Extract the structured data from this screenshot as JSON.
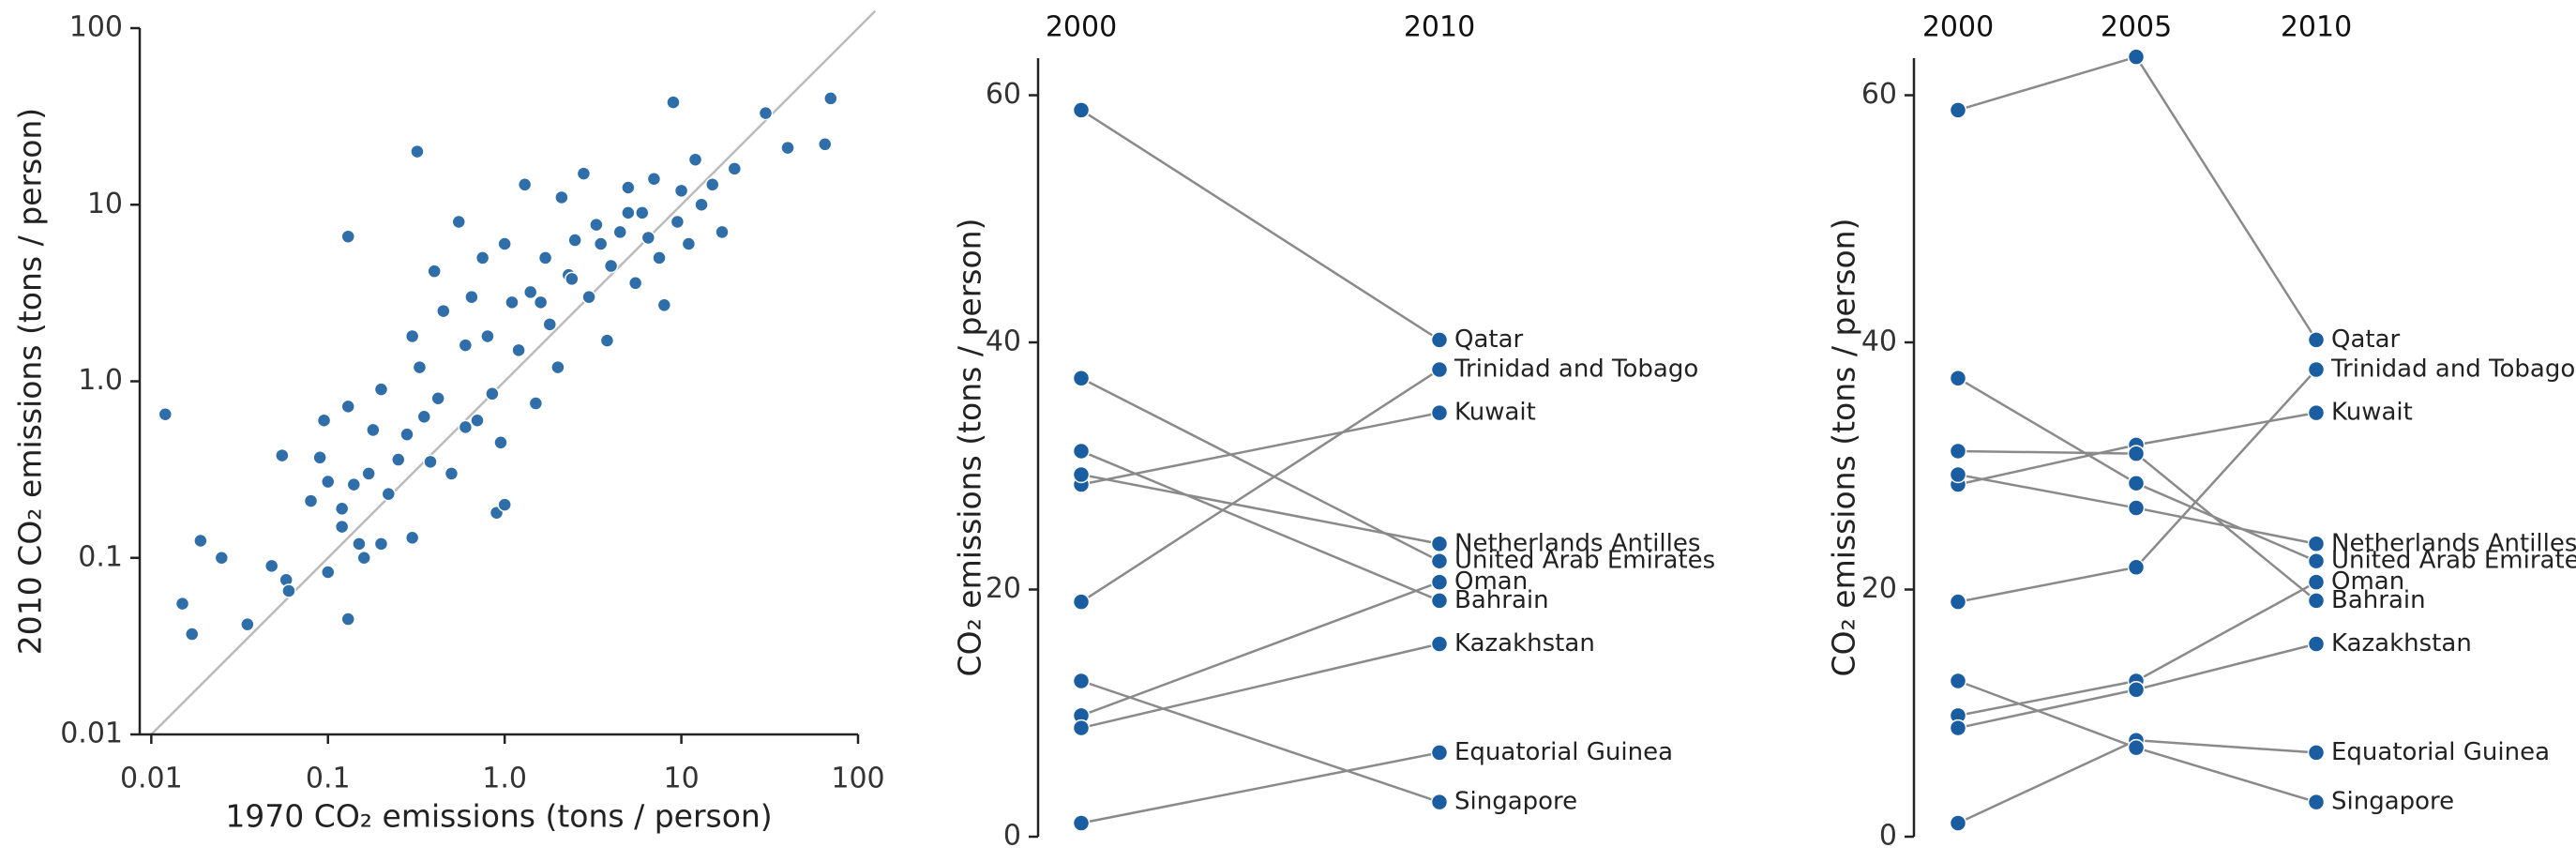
{
  "chart_data": [
    {
      "type": "scatter",
      "xlabel": "1970 CO₂ emissions (tons / person)",
      "ylabel": "2010 CO₂ emissions (tons / person)",
      "xscale": "log",
      "yscale": "log",
      "xlim": [
        0.0086,
        100
      ],
      "ylim": [
        0.01,
        100
      ],
      "xticks": [
        0.01,
        0.1,
        {
          "value": 1,
          "label": "1.0"
        },
        10,
        100
      ],
      "yticks": [
        0.01,
        0.1,
        {
          "value": 1,
          "label": "1.0"
        },
        10,
        100
      ],
      "color": "#2f6ea8",
      "diagonal_color": "#bbbbbb",
      "x": [
        0.012,
        0.015,
        0.017,
        0.019,
        0.025,
        0.035,
        0.048,
        0.055,
        0.058,
        0.06,
        0.08,
        0.09,
        0.095,
        0.1,
        0.1,
        0.12,
        0.12,
        0.13,
        0.13,
        0.13,
        0.14,
        0.15,
        0.16,
        0.17,
        0.18,
        0.2,
        0.2,
        0.25,
        0.28,
        0.3,
        0.3,
        0.32,
        0.33,
        0.35,
        0.38,
        0.4,
        0.42,
        0.45,
        0.5,
        0.55,
        0.6,
        0.65,
        0.7,
        0.75,
        0.8,
        0.85,
        0.9,
        0.95,
        1.0,
        1.0,
        1.1,
        1.2,
        1.3,
        1.4,
        1.5,
        1.7,
        1.8,
        2.0,
        2.1,
        2.3,
        2.5,
        2.8,
        3,
        3.3,
        3.8,
        4,
        4.5,
        5,
        5.5,
        6,
        6.5,
        7,
        7.5,
        8,
        9,
        9.5,
        10,
        11,
        12,
        13,
        15,
        17,
        20,
        30,
        40,
        65,
        70,
        0.22,
        0.6,
        1.6,
        5,
        3.5,
        2.4
      ],
      "values": [
        0.65,
        0.055,
        0.037,
        0.125,
        0.1,
        0.042,
        0.09,
        0.38,
        0.075,
        0.065,
        0.21,
        0.37,
        0.6,
        0.083,
        0.27,
        0.19,
        0.15,
        6.6,
        0.045,
        0.72,
        0.26,
        0.12,
        0.1,
        0.3,
        0.53,
        0.9,
        0.12,
        0.36,
        0.5,
        1.8,
        0.13,
        20,
        1.2,
        0.63,
        0.35,
        4.2,
        0.8,
        2.5,
        0.3,
        8,
        1.6,
        3.0,
        0.6,
        5.0,
        1.8,
        0.85,
        0.18,
        0.45,
        6,
        0.2,
        2.8,
        1.5,
        13,
        3.2,
        0.75,
        5,
        2.1,
        1.2,
        11,
        4,
        6.3,
        15,
        3,
        7.7,
        1.7,
        4.5,
        7,
        12.5,
        3.6,
        9,
        6.5,
        14,
        5,
        2.7,
        38,
        8,
        12,
        6,
        18,
        10,
        13,
        7,
        16,
        33,
        21,
        22,
        40,
        0.23,
        0.55,
        2.8,
        9,
        6,
        3.8
      ]
    },
    {
      "type": "slope",
      "ylabel": "CO₂ emissions (tons / person)",
      "categories": [
        "2000",
        "2010"
      ],
      "ylim": [
        0,
        63
      ],
      "yticks": [
        0,
        20,
        40,
        60
      ],
      "color": "#1a5da0",
      "line_color": "#8a8a8a",
      "series": [
        {
          "name": "Qatar",
          "values": [
            58.8,
            40.2
          ]
        },
        {
          "name": "Trinidad and Tobago",
          "values": [
            19.0,
            37.8
          ]
        },
        {
          "name": "Kuwait",
          "values": [
            28.5,
            34.3
          ]
        },
        {
          "name": "Netherlands Antilles",
          "values": [
            29.3,
            23.7
          ]
        },
        {
          "name": "United Arab Emirates",
          "values": [
            37.1,
            22.3
          ]
        },
        {
          "name": "Oman",
          "values": [
            9.8,
            20.6
          ]
        },
        {
          "name": "Bahrain",
          "values": [
            31.2,
            19.1
          ]
        },
        {
          "name": "Kazakhstan",
          "values": [
            8.8,
            15.6
          ]
        },
        {
          "name": "Equatorial Guinea",
          "values": [
            1.1,
            6.8
          ]
        },
        {
          "name": "Singapore",
          "values": [
            12.6,
            2.8
          ]
        }
      ]
    },
    {
      "type": "slope",
      "ylabel": "CO₂ emissions (tons / person)",
      "categories": [
        "2000",
        "2005",
        "2010"
      ],
      "ylim": [
        0,
        63
      ],
      "yticks": [
        0,
        20,
        40,
        60
      ],
      "color": "#1a5da0",
      "line_color": "#8a8a8a",
      "series": [
        {
          "name": "Qatar",
          "values": [
            58.8,
            63.1,
            40.2
          ]
        },
        {
          "name": "Trinidad and Tobago",
          "values": [
            19.0,
            21.8,
            37.8
          ]
        },
        {
          "name": "Kuwait",
          "values": [
            28.5,
            31.7,
            34.3
          ]
        },
        {
          "name": "Netherlands Antilles",
          "values": [
            29.3,
            26.6,
            23.7
          ]
        },
        {
          "name": "United Arab Emirates",
          "values": [
            37.1,
            28.6,
            22.3
          ]
        },
        {
          "name": "Oman",
          "values": [
            9.8,
            12.6,
            20.6
          ]
        },
        {
          "name": "Bahrain",
          "values": [
            31.2,
            31.0,
            19.1
          ]
        },
        {
          "name": "Kazakhstan",
          "values": [
            8.8,
            11.9,
            15.6
          ]
        },
        {
          "name": "Equatorial Guinea",
          "values": [
            1.1,
            7.8,
            6.8
          ]
        },
        {
          "name": "Singapore",
          "values": [
            12.6,
            7.2,
            2.8
          ]
        }
      ]
    }
  ]
}
